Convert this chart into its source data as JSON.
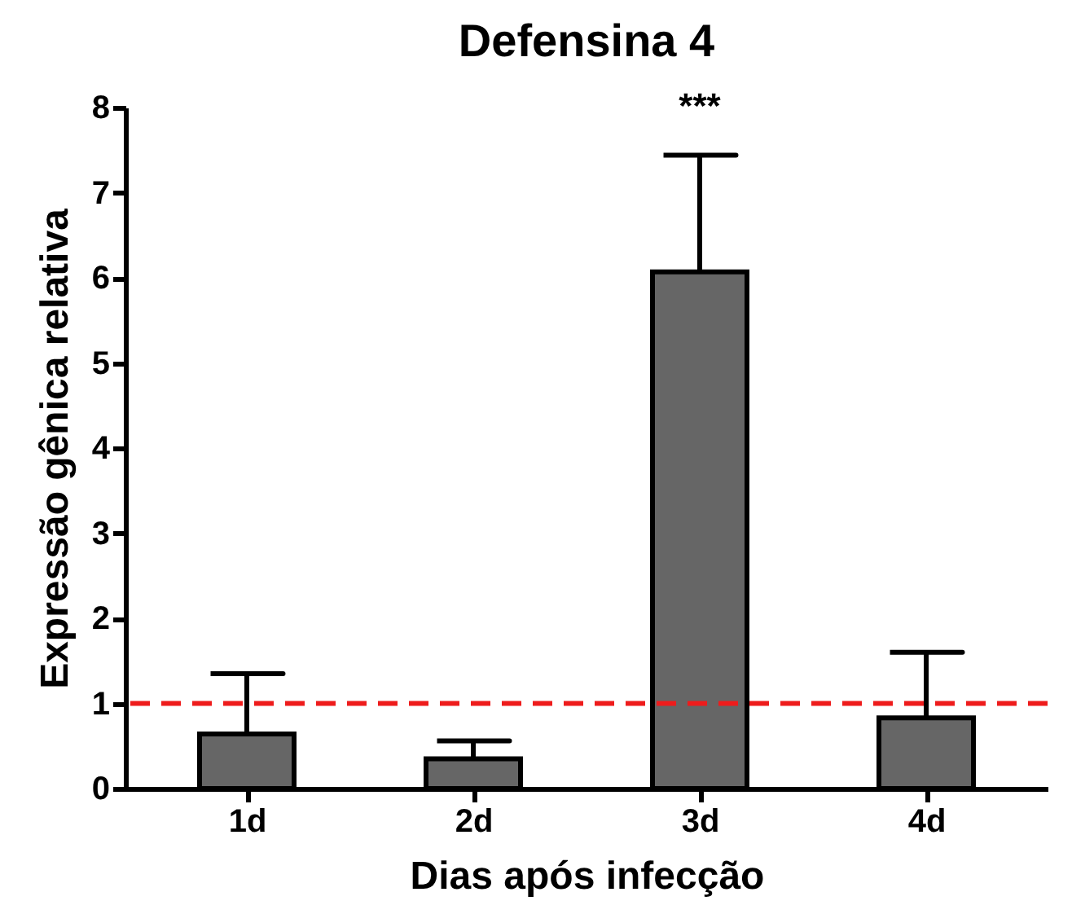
{
  "chart_data": {
    "type": "bar",
    "title": "Defensina 4",
    "xlabel": "Dias após infecção",
    "ylabel": "Expressão gênica relativa",
    "categories": [
      "1d",
      "2d",
      "3d",
      "4d"
    ],
    "values": [
      0.64,
      0.35,
      6.07,
      0.83
    ],
    "errors": [
      [
        0.64,
        1.35
      ],
      [
        0.35,
        0.56
      ],
      [
        6.07,
        7.44
      ],
      [
        0.83,
        1.6
      ]
    ],
    "color": "#666666",
    "ylim": [
      0,
      8
    ],
    "yticks": [
      0,
      1,
      2,
      3,
      4,
      5,
      6,
      7,
      8
    ],
    "grid": false,
    "ref_lines": [
      {
        "axis": "y",
        "value": 1,
        "color": "#ee1c1c",
        "line_style": "dashed"
      }
    ],
    "annotations": [
      "***"
    ]
  }
}
